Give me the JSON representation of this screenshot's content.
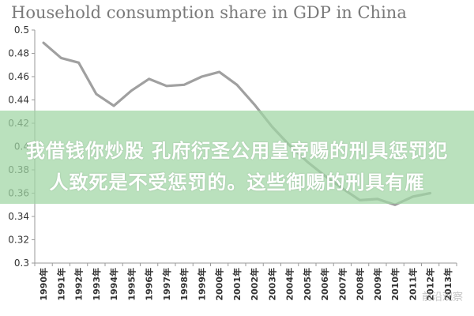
{
  "chart_data": {
    "type": "line",
    "title": "Household consumption share in GDP in China",
    "xlabel": "",
    "ylabel": "",
    "categories": [
      "1990年",
      "1991年",
      "1992年",
      "1993年",
      "1994年",
      "1995年",
      "1996年",
      "1997年",
      "1998年",
      "1999年",
      "2000年",
      "2001年",
      "2002年",
      "2003年",
      "2004年",
      "2005年",
      "2006年",
      "2007年",
      "2008年",
      "2009年",
      "2010年",
      "2011年",
      "2012年",
      "2013年"
    ],
    "series": [
      {
        "values": [
          0.489,
          0.476,
          0.472,
          0.445,
          0.435,
          0.448,
          0.458,
          0.452,
          0.453,
          0.46,
          0.464,
          0.453,
          0.436,
          0.417,
          0.401,
          0.387,
          0.375,
          0.364,
          0.354,
          0.355,
          0.35,
          0.357,
          0.36,
          null
        ]
      }
    ],
    "ylim": [
      0.3,
      0.5
    ],
    "yticks": [
      "0.3",
      "0.32",
      "0.34",
      "0.36",
      "0.38",
      "0.4",
      "0.42",
      "0.44",
      "0.46",
      "0.48",
      "0.5"
    ],
    "grid": false,
    "legend": "none",
    "line_color": "#a0a0a0"
  },
  "overlay": {
    "line1": "我借钱你炒股 孔府衍圣公用皇帝赐的刑具惩罚犯",
    "line2": "人致死是不受惩罚的。这些御赐的刑具有雁"
  },
  "watermark": "前沿观察"
}
